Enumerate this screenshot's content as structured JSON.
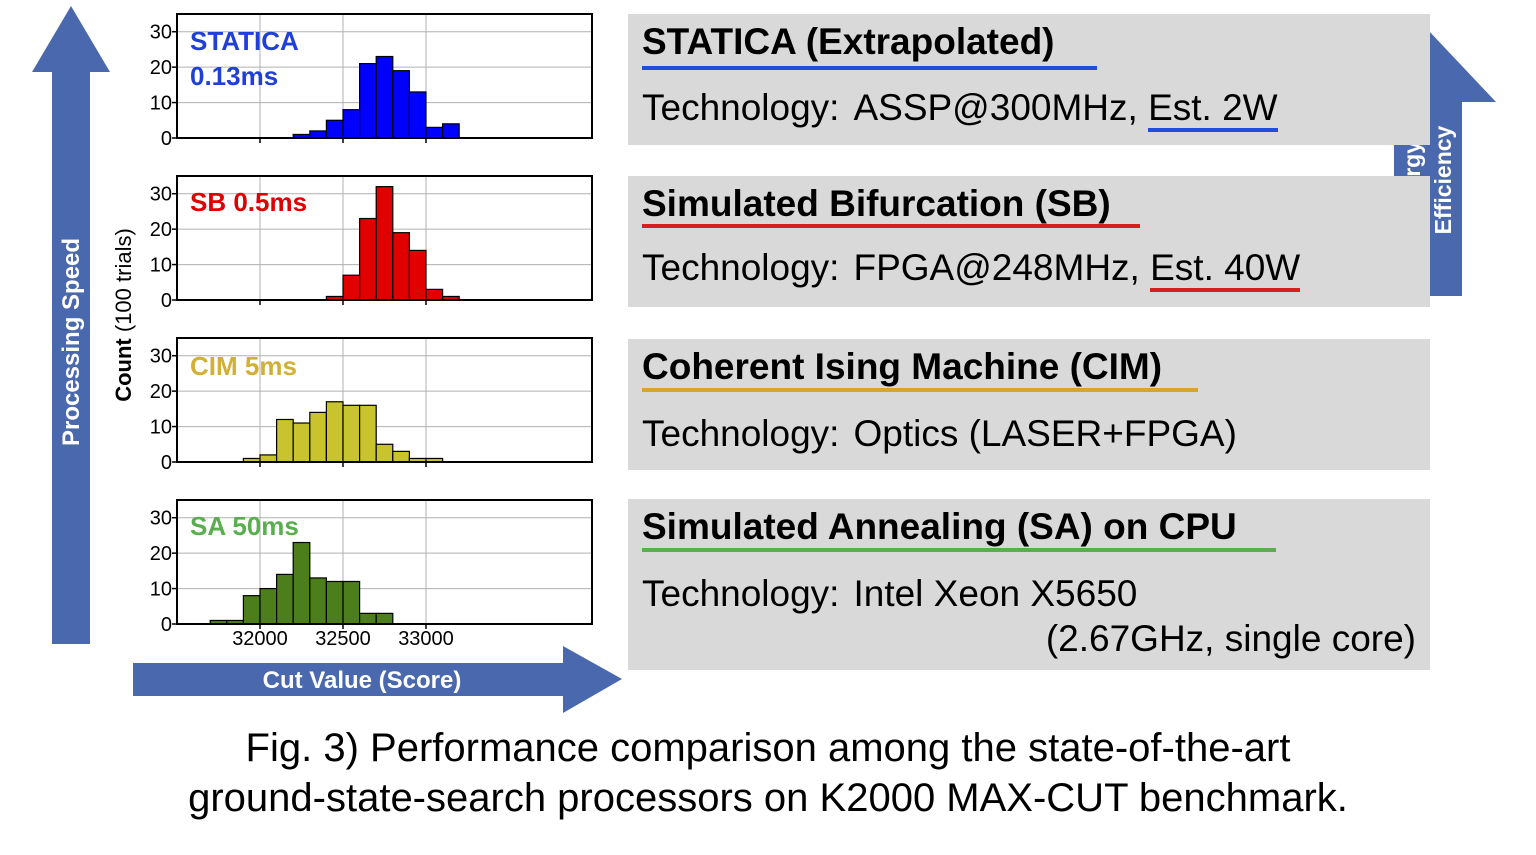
{
  "figure": {
    "axis_y_label": "Processing Speed",
    "axis_x_label": "Cut Value (Score)",
    "count_label_bold": "Count",
    "count_label_rest": " (100 trials)",
    "energy_label_line1": "Energy",
    "energy_label_line2": "Efficiency",
    "arrow_color": "#4a68ad"
  },
  "panels": [
    {
      "title": "STATICA (Extrapolated)",
      "tech_label": "Technology:",
      "tech_value": "ASSP@300MHz, ",
      "tech_power": "Est. 2W",
      "color": "#1f4fd8"
    },
    {
      "title": "Simulated Bifurcation (SB)",
      "tech_label": "Technology:",
      "tech_value": "FPGA@248MHz, ",
      "tech_power": "Est. 40W",
      "color": "#d81f1f"
    },
    {
      "title": "Coherent Ising Machine (CIM)",
      "tech_label": "Technology:",
      "tech_value": "Optics (LASER+FPGA)",
      "color": "#d4a728"
    },
    {
      "title": "Simulated Annealing (SA) on CPU",
      "tech_label": "Technology:",
      "tech_value": "Intel Xeon X5650",
      "tech_line2": "(2.67GHz, single core)",
      "color": "#5aae4f"
    }
  ],
  "caption": {
    "line1": "Fig. 3) Performance comparison among the state-of-the-art",
    "line2": "ground-state-search processors on K2000 MAX-CUT benchmark."
  },
  "chart_data": {
    "type": "bar",
    "xlabel": "Cut Value (Score)",
    "ylabel": "Count (100 trials)",
    "xlim": [
      31500,
      34000
    ],
    "ylim": [
      0,
      35
    ],
    "x_ticks": [
      32000,
      32500,
      33000
    ],
    "x_tick_labels": [
      "32000",
      "32500",
      "33000"
    ],
    "y_ticks": [
      0,
      10,
      20,
      30
    ],
    "y_tick_labels": [
      "0",
      "10",
      "20",
      "30"
    ],
    "bin_width": 100,
    "grid": true,
    "histograms": [
      {
        "name": "STATICA",
        "label_line1": "STATICA",
        "label_line2": "0.13ms",
        "color": "#0000ff",
        "label_color": "#1f3fd8",
        "bins": [
          32200,
          32300,
          32400,
          32500,
          32600,
          32700,
          32800,
          32900,
          33000,
          33100
        ],
        "values": [
          1,
          2,
          5,
          8,
          21,
          23,
          19,
          13,
          3,
          4
        ]
      },
      {
        "name": "SB",
        "label_line1": "SB 0.5ms",
        "color": "#e00000",
        "label_color": "#e00000",
        "bins": [
          32400,
          32500,
          32600,
          32700,
          32800,
          32900,
          33000,
          33100
        ],
        "values": [
          1,
          7,
          23,
          32,
          19,
          14,
          3,
          1
        ]
      },
      {
        "name": "CIM",
        "label_line1": "CIM 5ms",
        "color": "#c9c42e",
        "label_color": "#d2b036",
        "bins": [
          31900,
          32000,
          32100,
          32200,
          32300,
          32400,
          32500,
          32600,
          32700,
          32800,
          32900,
          33000
        ],
        "values": [
          1,
          2,
          12,
          11,
          14,
          17,
          16,
          16,
          5,
          3,
          1,
          1
        ]
      },
      {
        "name": "SA",
        "label_line1": "SA 50ms",
        "color": "#4c7f1c",
        "label_color": "#5aae4f",
        "bins": [
          31700,
          31800,
          31900,
          32000,
          32100,
          32200,
          32300,
          32400,
          32500,
          32600,
          32700
        ],
        "values": [
          1,
          1,
          8,
          10,
          14,
          23,
          13,
          12,
          12,
          3,
          3
        ]
      }
    ]
  }
}
